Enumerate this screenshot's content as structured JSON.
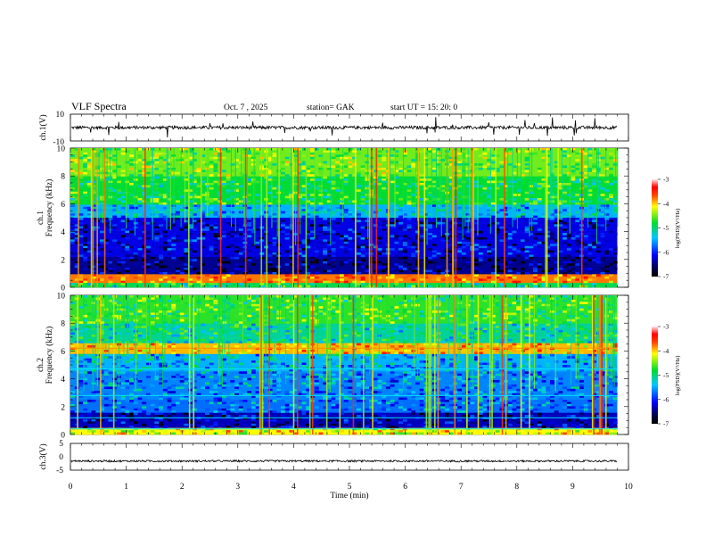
{
  "header": {
    "title": "VLF  Spectra",
    "date": "Oct. 7  , 2025",
    "station": "station= GAK",
    "start": "start  UT  =    15: 20: 0"
  },
  "chart_data": [
    {
      "type": "line",
      "panel": "ch1-waveform",
      "ylabel": "ch.1(V)",
      "ylim": [
        -10,
        10
      ],
      "ytick_labels": [
        "10",
        "-10"
      ],
      "baseline_value": 0,
      "noise_band": [
        -1.5,
        1.5
      ],
      "line_color": "#000000"
    },
    {
      "type": "heatmap",
      "panel": "ch1-spectrogram",
      "ylabel_line1": "ch.1",
      "ylabel_line2": "Frequency  (kHz)",
      "ylim": [
        0,
        10
      ],
      "ytick_labels": [
        "0",
        "2",
        "4",
        "6",
        "8",
        "10"
      ],
      "xlim": [
        0,
        10
      ],
      "data_extent_min": 9.8,
      "bright_band_khz": [
        0,
        1
      ],
      "dark_band_khz": [
        1,
        5
      ],
      "active_band_khz": [
        5.5,
        10
      ],
      "colorbar": {
        "range": [
          -7,
          -3
        ],
        "tick_labels": [
          "-3",
          "-4",
          "-5",
          "-6",
          "-7"
        ],
        "label": "log(PSD)(V²/Hz)"
      }
    },
    {
      "type": "heatmap",
      "panel": "ch2-spectrogram",
      "ylabel_line1": "ch.2",
      "ylabel_line2": "Frequency  (kHz)",
      "ylim": [
        0,
        10
      ],
      "ytick_labels": [
        "0",
        "2",
        "4",
        "6",
        "8",
        "10"
      ],
      "xlim": [
        0,
        10
      ],
      "data_extent_min": 9.8,
      "horizontal_lines_khz": [
        6.2,
        4.7,
        2.8,
        1.2,
        0.4
      ],
      "colorbar": {
        "range": [
          -7,
          -3
        ],
        "tick_labels": [
          "-3",
          "-4",
          "-5",
          "-6",
          "-7"
        ],
        "label": "log(PSD)(V²/Hz)"
      }
    },
    {
      "type": "line",
      "panel": "ch3-waveform",
      "ylabel": "ch.3(V)",
      "ylim": [
        -5,
        5
      ],
      "ytick_labels": [
        "5",
        "0",
        "-5"
      ],
      "baseline_value": -1.6,
      "line_color": "#000000"
    },
    {
      "type": "axis",
      "xlabel": "Time  (min)",
      "xlim": [
        0,
        10
      ],
      "xtick_labels": [
        "0",
        "1",
        "2",
        "3",
        "4",
        "5",
        "6",
        "7",
        "8",
        "9",
        "10"
      ]
    }
  ]
}
